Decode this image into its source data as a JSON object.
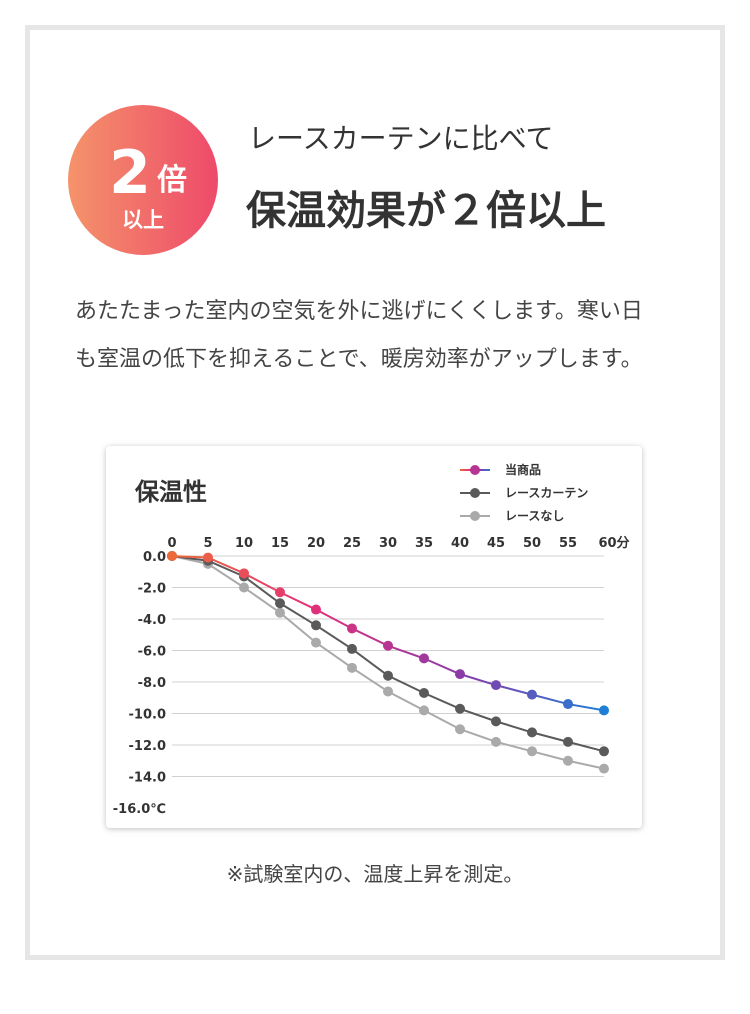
{
  "badge": {
    "number": "2",
    "unit": "倍",
    "sub": "以上"
  },
  "header": {
    "subtitle": "レースカーテンに比べて",
    "title": "保温効果が２倍以上"
  },
  "body": [
    "あたたまった室内の空気を外に逃げにくくします。寒い日",
    "も室温の低下を抑えることで、暖房効率がアップします。"
  ],
  "chart_data": {
    "type": "line",
    "title": "保温性",
    "x": [
      0,
      5,
      10,
      15,
      20,
      25,
      30,
      35,
      40,
      45,
      50,
      55,
      60
    ],
    "series": [
      {
        "name": "当商品",
        "color": "#e0307a",
        "gradient": [
          "#ef6a3a",
          "#e0307a",
          "#8b3aa8",
          "#1f7fd6"
        ],
        "values": [
          0,
          -0.1,
          -1.1,
          -2.3,
          -3.4,
          -4.6,
          -5.7,
          -6.5,
          -7.5,
          -8.2,
          -8.8,
          -9.4,
          -9.8
        ]
      },
      {
        "name": "レースカーテン",
        "color": "#5a5a5a",
        "values": [
          0,
          -0.3,
          -1.3,
          -3.0,
          -4.4,
          -5.9,
          -7.6,
          -8.7,
          -9.7,
          -10.5,
          -11.2,
          -11.8,
          -12.4
        ]
      },
      {
        "name": "レースなし",
        "color": "#aaaaaa",
        "values": [
          0,
          -0.5,
          -2.0,
          -3.6,
          -5.5,
          -7.1,
          -8.6,
          -9.8,
          -11.0,
          -11.8,
          -12.4,
          -13.0,
          -13.5
        ]
      }
    ],
    "xlim": [
      0,
      60
    ],
    "xticks": [
      0,
      5,
      10,
      15,
      20,
      25,
      30,
      35,
      40,
      45,
      50,
      55,
      {
        "value": 60,
        "label": "60分"
      }
    ],
    "ylim": [
      -16,
      0
    ],
    "yticks": [
      {
        "value": 0,
        "label": "0.0"
      },
      {
        "value": -2,
        "label": "-2.0"
      },
      {
        "value": -4,
        "label": "-4.0"
      },
      {
        "value": -6,
        "label": "-6.0"
      },
      {
        "value": -8,
        "label": "-8.0"
      },
      {
        "value": -10,
        "label": "-10.0"
      },
      {
        "value": -12,
        "label": "-12.0"
      },
      {
        "value": -14,
        "label": "-14.0"
      },
      {
        "value": -16,
        "label": "-16.0℃"
      }
    ],
    "grid": true
  },
  "footnote": "※試験室内の、温度上昇を測定。"
}
